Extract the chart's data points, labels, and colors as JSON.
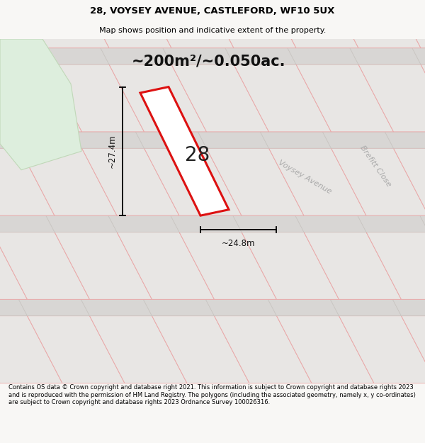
{
  "title_line1": "28, VOYSEY AVENUE, CASTLEFORD, WF10 5UX",
  "title_line2": "Map shows position and indicative extent of the property.",
  "area_text": "~200m²/~0.050ac.",
  "plot_number": "28",
  "dim_width": "~24.8m",
  "dim_height": "~27.4m",
  "street_label1": "Voysey Avenue",
  "street_label2": "Brefitt Close",
  "footer_text": "Contains OS data © Crown copyright and database right 2021. This information is subject to Crown copyright and database rights 2023 and is reproduced with the permission of HM Land Registry. The polygons (including the associated geometry, namely x, y co-ordinates) are subject to Crown copyright and database rights 2023 Ordnance Survey 100026316.",
  "bg_color": "#f2f0ee",
  "map_bg": "#eeecea",
  "plot_fill": "#e8e6e4",
  "plot_edge_color": "#dd1111",
  "neighbor_line_color": "#e8aaaa",
  "road_fill": "#d8d6d4",
  "green_area_color": "#ddeedd",
  "green_edge_color": "#c0d8b8",
  "title_bg": "#f8f7f5"
}
